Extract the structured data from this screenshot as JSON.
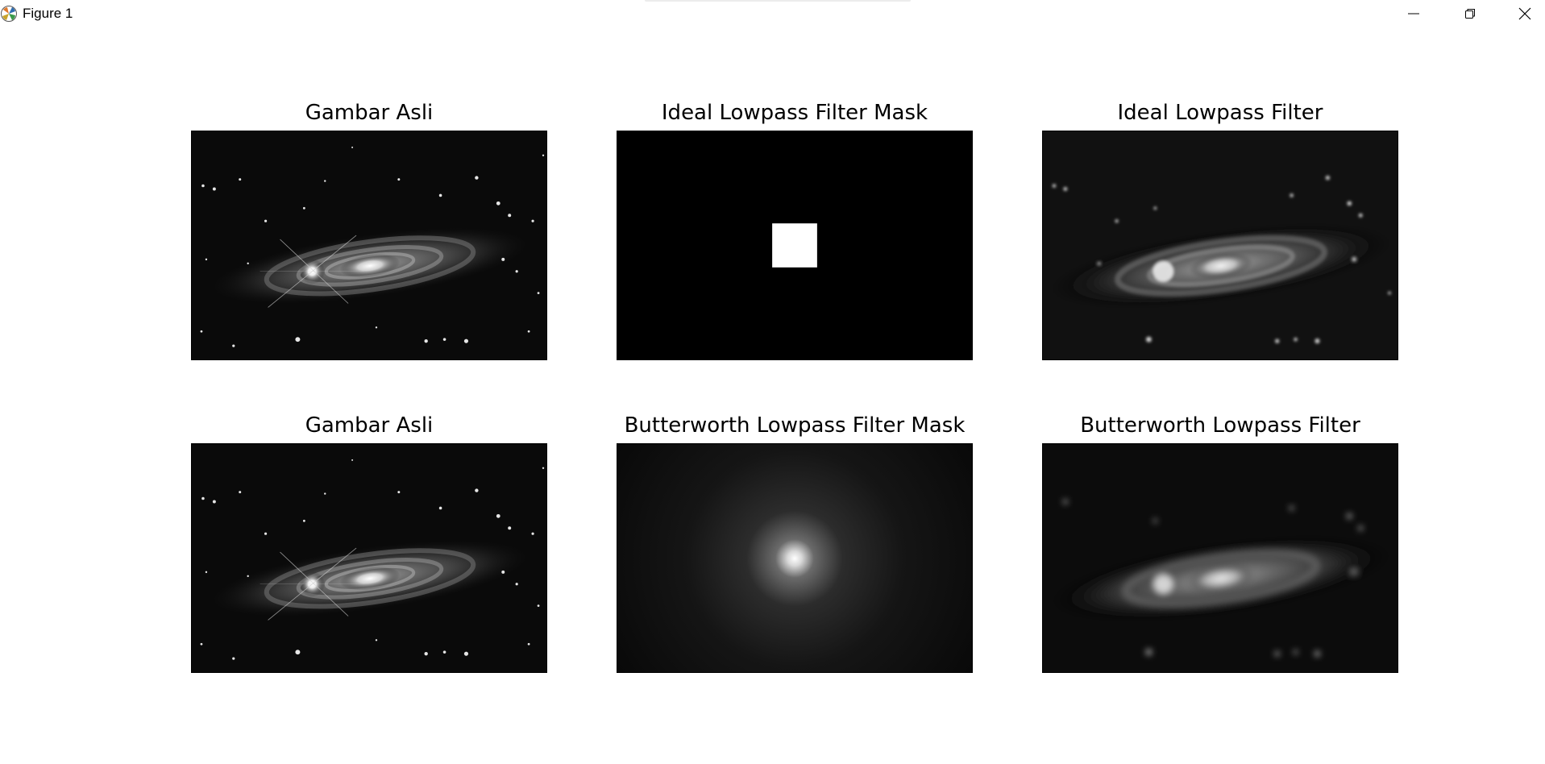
{
  "window": {
    "title": "Figure 1",
    "icons": {
      "app": "matplotlib-icon",
      "minimize": "minimize-icon",
      "maximize": "restore-icon",
      "close": "close-icon"
    }
  },
  "figure": {
    "subplots": [
      {
        "title": "Gambar Asli",
        "image": "galaxy-original"
      },
      {
        "title": "Ideal Lowpass Filter Mask",
        "image": "ideal-mask"
      },
      {
        "title": "Ideal Lowpass Filter",
        "image": "galaxy-ideal-filtered"
      },
      {
        "title": "Gambar Asli",
        "image": "galaxy-original"
      },
      {
        "title": "Butterworth Lowpass Filter Mask",
        "image": "butterworth-mask"
      },
      {
        "title": "Butterworth Lowpass Filter",
        "image": "galaxy-butterworth-filtered"
      }
    ]
  }
}
